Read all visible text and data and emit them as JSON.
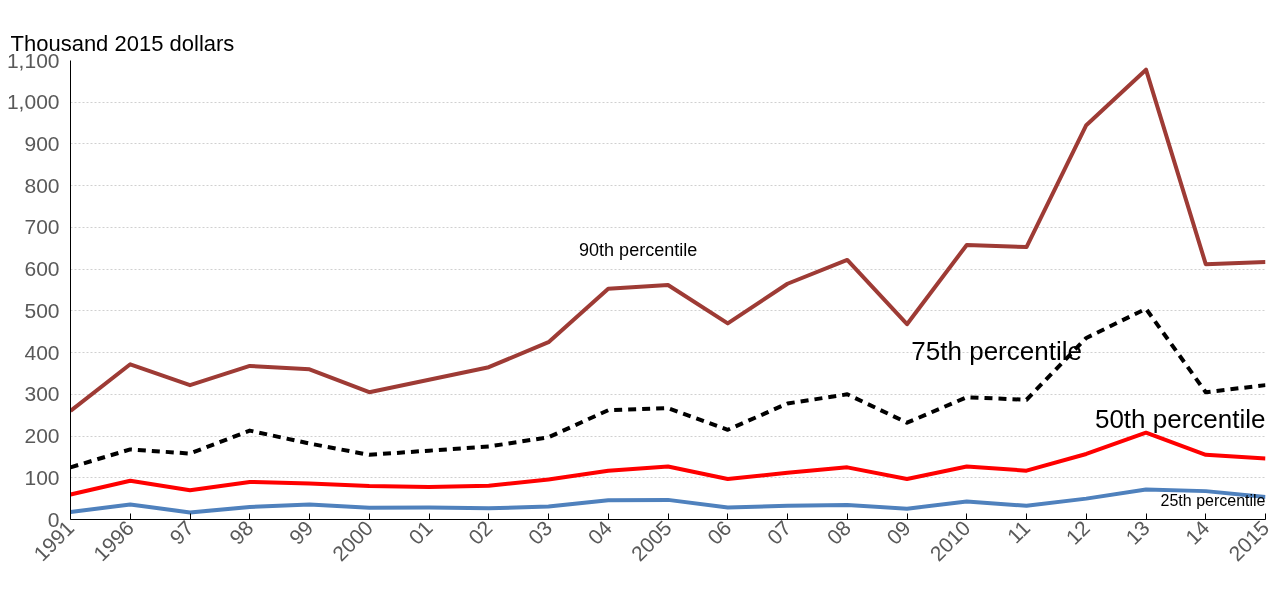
{
  "chart_data": {
    "type": "line",
    "ylabel": "Thousand 2015 dollars",
    "categories": [
      "1991",
      "1996",
      "97",
      "98",
      "99",
      "2000",
      "01",
      "02",
      "03",
      "04",
      "2005",
      "06",
      "07",
      "08",
      "09",
      "2010",
      "11",
      "12",
      "13",
      "14",
      "2015"
    ],
    "series": [
      {
        "name": "90th percentile",
        "color": "#9e3b35",
        "values": [
          260,
          372,
          322,
          368,
          360,
          305,
          335,
          365,
          425,
          553,
          562,
          470,
          565,
          622,
          468,
          658,
          653,
          945,
          1078,
          612,
          617
        ]
      },
      {
        "name": "75th percentile",
        "color": "#000000",
        "line_style": "dashed",
        "values": [
          125,
          168,
          158,
          213,
          182,
          155,
          165,
          175,
          197,
          262,
          267,
          215,
          278,
          300,
          232,
          293,
          287,
          435,
          505,
          305,
          322
        ]
      },
      {
        "name": "50th percentile",
        "color": "#ff0000",
        "values": [
          60,
          93,
          70,
          90,
          86,
          80,
          78,
          81,
          96,
          117,
          127,
          97,
          112,
          125,
          97,
          127,
          117,
          157,
          208,
          155,
          146
        ]
      },
      {
        "name": "25th percentile",
        "color": "#4f81bd",
        "values": [
          18,
          36,
          17,
          30,
          36,
          28,
          29,
          27,
          31,
          46,
          47,
          29,
          33,
          35,
          26,
          43,
          33,
          50,
          72,
          68,
          54
        ]
      }
    ],
    "ylim": [
      0,
      1100
    ],
    "yticks": [
      0,
      100,
      200,
      300,
      400,
      500,
      600,
      700,
      800,
      900,
      {
        "value": 1000,
        "label": "1,000"
      },
      {
        "value": 1100,
        "label": "1,100"
      }
    ],
    "grid": "y",
    "marker": "none",
    "line_style": "solid"
  }
}
